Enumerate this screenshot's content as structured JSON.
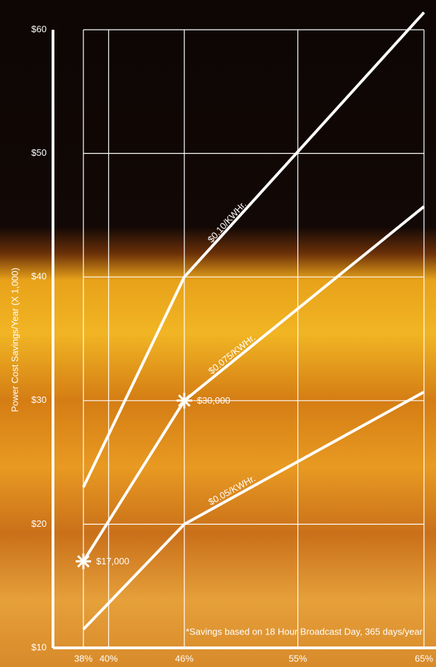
{
  "chart_data": {
    "type": "line",
    "y_label": "Power Cost Savings/Year (X 1,000)",
    "note": "*Savings based on 18 Hour Broadcast Day, 365 days/year",
    "x": [
      38,
      46,
      65
    ],
    "series": [
      {
        "name": "$0.10/KWHr.",
        "color": "#ffffff",
        "values": [
          23,
          40,
          61.4
        ]
      },
      {
        "name": "$0.075/KWHr.",
        "color": "#ffffff",
        "values": [
          17,
          30,
          45.7
        ],
        "value_labels": [
          "$17,000",
          "$30,000",
          null
        ]
      },
      {
        "name": "$0.05/KWHr.",
        "color": "#ffffff",
        "values": [
          11.5,
          20,
          30.7
        ]
      }
    ],
    "xlim": [
      38,
      65
    ],
    "xticks": [
      {
        "value": 38,
        "label": "38%"
      },
      {
        "value": 40,
        "label": "40%"
      },
      {
        "value": 46,
        "label": "46%"
      },
      {
        "value": 55,
        "label": "55%"
      },
      {
        "value": 65,
        "label": "65%"
      }
    ],
    "ylim": [
      10,
      60
    ],
    "yticks": [
      {
        "value": 10,
        "label": "$10"
      },
      {
        "value": 20,
        "label": "$20"
      },
      {
        "value": 30,
        "label": "$30"
      },
      {
        "value": 40,
        "label": "$40"
      },
      {
        "value": 50,
        "label": "$50"
      },
      {
        "value": 60,
        "label": "$60"
      }
    ],
    "grid": true
  }
}
